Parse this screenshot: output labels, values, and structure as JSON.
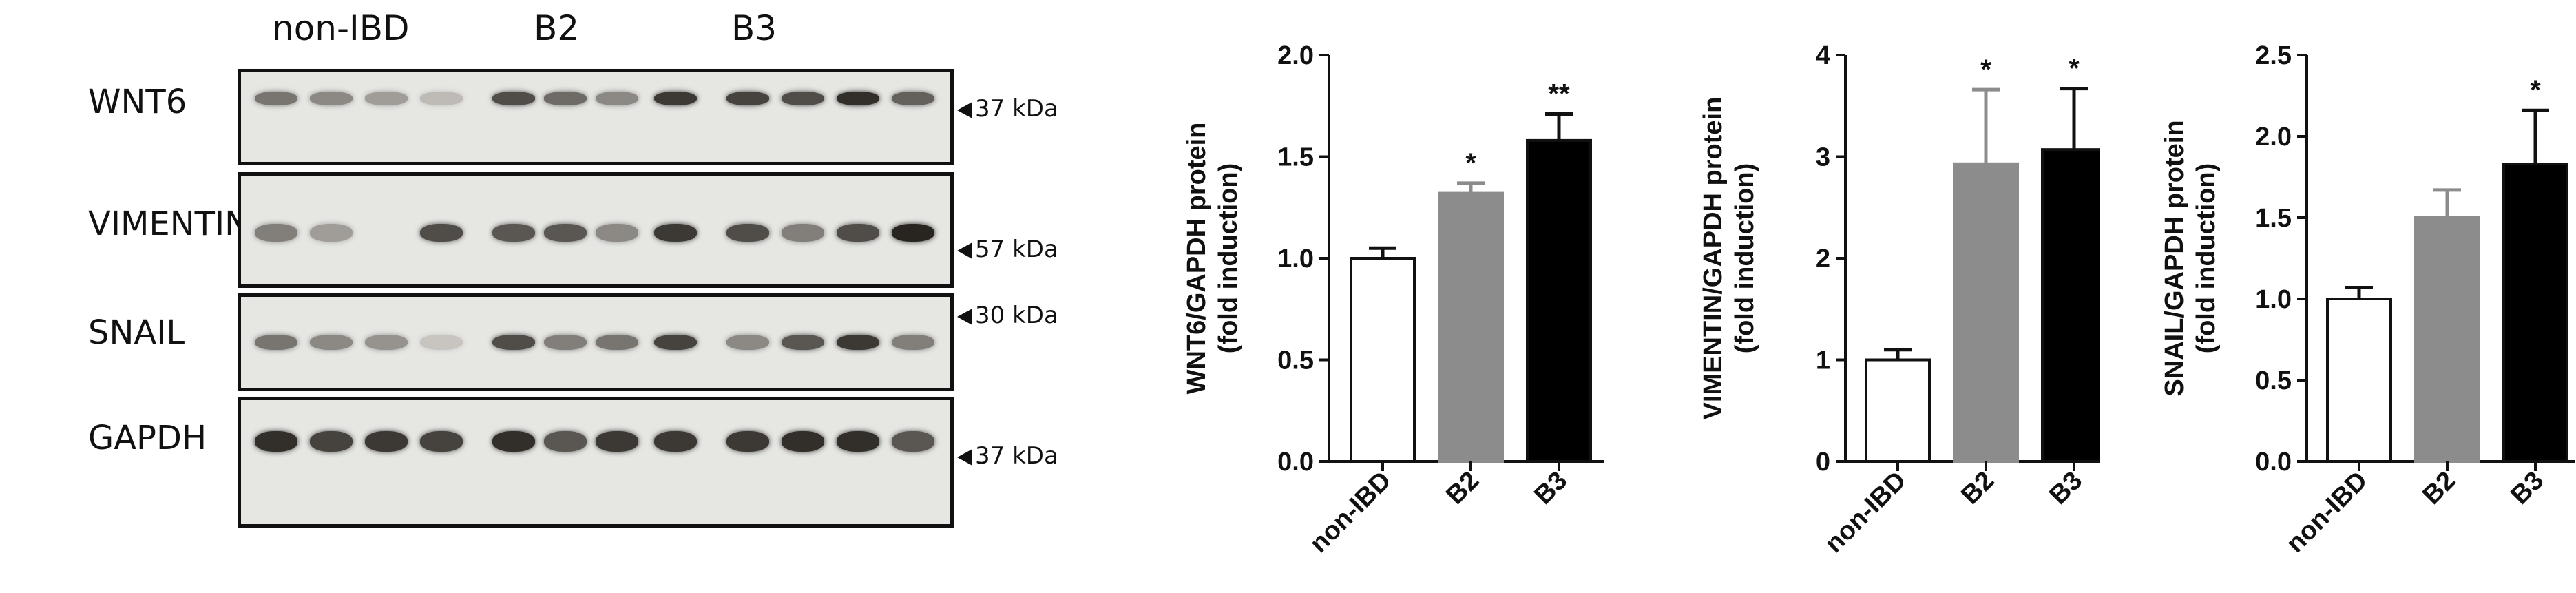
{
  "blot": {
    "groups": [
      "non-IBD",
      "B2",
      "B3"
    ],
    "rows": [
      {
        "protein": "WNT6",
        "marker": "37 kDa",
        "intensity": [
          0.55,
          0.45,
          0.35,
          0.2,
          0.75,
          0.6,
          0.45,
          0.85,
          0.8,
          0.75,
          0.9,
          0.65
        ]
      },
      {
        "protein": "VIMENTIN",
        "marker": "57 kDa",
        "intensity": [
          0.5,
          0.35,
          0.0,
          0.75,
          0.7,
          0.7,
          0.45,
          0.85,
          0.75,
          0.5,
          0.75,
          0.95
        ]
      },
      {
        "protein": "SNAIL",
        "marker": "30 kDa",
        "intensity": [
          0.55,
          0.45,
          0.4,
          0.15,
          0.75,
          0.5,
          0.55,
          0.8,
          0.45,
          0.7,
          0.85,
          0.5
        ]
      },
      {
        "protein": "GAPDH",
        "marker": "37 kDa",
        "intensity": [
          0.9,
          0.8,
          0.85,
          0.8,
          0.9,
          0.7,
          0.85,
          0.85,
          0.85,
          0.9,
          0.9,
          0.7
        ]
      }
    ]
  },
  "chart_data": [
    {
      "type": "bar",
      "categories": [
        "non-IBD",
        "B2",
        "B3"
      ],
      "values": [
        1.0,
        1.32,
        1.58
      ],
      "errors": [
        0.05,
        0.05,
        0.13
      ],
      "significance": [
        "",
        "*",
        "**"
      ],
      "bar_colors": [
        "#ffffff",
        "#8c8c8c",
        "#000000"
      ],
      "ylabel": "WNT6/GAPDH protein\n(fold induction)",
      "ylim": [
        0,
        2.0
      ],
      "yticks": [
        "0.0",
        "0.5",
        "1.0",
        "1.5",
        "2.0"
      ],
      "ytick_values": [
        0,
        0.5,
        1.0,
        1.5,
        2.0
      ]
    },
    {
      "type": "bar",
      "categories": [
        "non-IBD",
        "B2",
        "B3"
      ],
      "values": [
        1.0,
        2.93,
        3.07
      ],
      "errors": [
        0.1,
        0.73,
        0.6
      ],
      "significance": [
        "",
        "*",
        "*"
      ],
      "bar_colors": [
        "#ffffff",
        "#8c8c8c",
        "#000000"
      ],
      "ylabel": "VIMENTIN/GAPDH protein\n(fold induction)",
      "ylim": [
        0,
        4
      ],
      "yticks": [
        "0",
        "1",
        "2",
        "3",
        "4"
      ],
      "ytick_values": [
        0,
        1,
        2,
        3,
        4
      ]
    },
    {
      "type": "bar",
      "categories": [
        "non-IBD",
        "B2",
        "B3"
      ],
      "values": [
        1.0,
        1.5,
        1.83
      ],
      "errors": [
        0.07,
        0.17,
        0.33
      ],
      "significance": [
        "",
        "",
        "*"
      ],
      "bar_colors": [
        "#ffffff",
        "#8c8c8c",
        "#000000"
      ],
      "ylabel": "SNAIL/GAPDH protein\n(fold induction)",
      "ylim": [
        0,
        2.5
      ],
      "yticks": [
        "0.0",
        "0.5",
        "1.0",
        "1.5",
        "2.0",
        "2.5"
      ],
      "ytick_values": [
        0,
        0.5,
        1.0,
        1.5,
        2.0,
        2.5
      ]
    }
  ]
}
